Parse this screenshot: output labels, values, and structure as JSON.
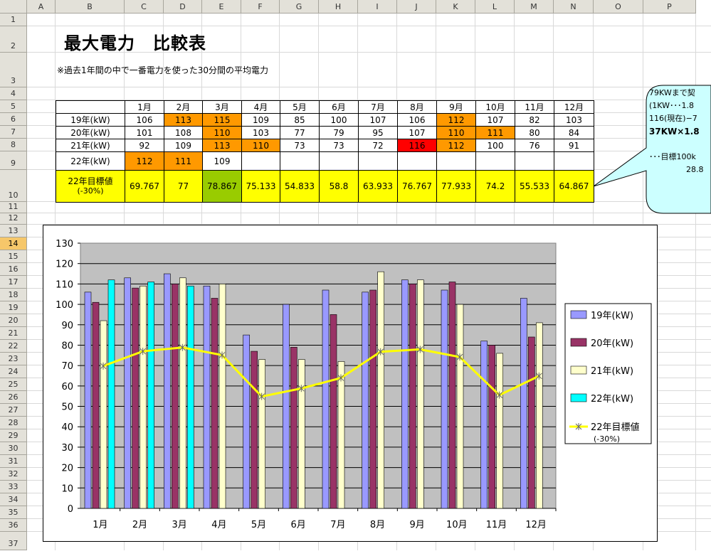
{
  "sheet": {
    "columns": [
      "A",
      "B",
      "C",
      "D",
      "E",
      "F",
      "G",
      "H",
      "I",
      "J",
      "K",
      "L",
      "M",
      "N",
      "O",
      "P"
    ],
    "rows": [
      "1",
      "2",
      "3",
      "4",
      "5",
      "6",
      "7",
      "8",
      "9",
      "10",
      "11",
      "12",
      "13",
      "14",
      "15",
      "16",
      "17",
      "18",
      "19",
      "20",
      "21",
      "22",
      "23",
      "24",
      "25",
      "26",
      "27",
      "28",
      "29",
      "30",
      "31",
      "32",
      "33",
      "34",
      "35",
      "36",
      "37"
    ],
    "selected_row": "14"
  },
  "title": "最大電力　比較表",
  "note": "※過去1年間の中で一番電力を使った30分間の平均電力",
  "table": {
    "months": [
      "1月",
      "2月",
      "3月",
      "4月",
      "5月",
      "6月",
      "7月",
      "8月",
      "9月",
      "10月",
      "11月",
      "12月"
    ],
    "rows": [
      {
        "label": "19年(kW)",
        "values": [
          "106",
          "113",
          "115",
          "109",
          "85",
          "100",
          "107",
          "106",
          "112",
          "107",
          "82",
          "103"
        ],
        "fills": [
          "",
          "#ff9900",
          "#ff9900",
          "",
          "",
          "",
          "",
          "",
          "#ff9900",
          "",
          "",
          ""
        ]
      },
      {
        "label": "20年(kW)",
        "values": [
          "101",
          "108",
          "110",
          "103",
          "77",
          "79",
          "95",
          "107",
          "110",
          "111",
          "80",
          "84"
        ],
        "fills": [
          "",
          "",
          "#ff9900",
          "",
          "",
          "",
          "",
          "",
          "#ff9900",
          "#ff9900",
          "",
          ""
        ]
      },
      {
        "label": "21年(kW)",
        "values": [
          "92",
          "109",
          "113",
          "110",
          "73",
          "73",
          "72",
          "116",
          "112",
          "100",
          "76",
          "91"
        ],
        "fills": [
          "",
          "",
          "#ff9900",
          "#ff9900",
          "",
          "",
          "",
          "#ff0000",
          "#ff9900",
          "",
          "",
          ""
        ]
      },
      {
        "label": "22年(kW)",
        "values": [
          "112",
          "111",
          "109",
          "",
          "",
          "",
          "",
          "",
          "",
          "",
          "",
          ""
        ],
        "fills": [
          "#ff9900",
          "#ff9900",
          "",
          "",
          "",
          "",
          "",
          "",
          "",
          "",
          "",
          ""
        ]
      }
    ],
    "target_label_1": "22年目標値",
    "target_label_2": "(-30%)",
    "target_values": [
      "69.767",
      "77",
      "78.867",
      "75.133",
      "54.833",
      "58.8",
      "63.933",
      "76.767",
      "77.933",
      "74.2",
      "55.533",
      "64.867"
    ],
    "target_fills": [
      "#ffff00",
      "#ffff00",
      "#99cc00",
      "#ffff00",
      "#ffff00",
      "#ffff00",
      "#ffff00",
      "#ffff00",
      "#ffff00",
      "#ffff00",
      "#ffff00",
      "#ffff00"
    ]
  },
  "callout": {
    "line1": "79KWまで契",
    "line2": "(1KW･･･1.8",
    "line3": "116(現在)−7",
    "line4": "37KW×1.8",
    "line5": "･･･目標100k",
    "line6": "28.8"
  },
  "colors": {
    "s19": "#9999ff",
    "s20": "#993366",
    "s21": "#ffffcc",
    "s22": "#00ffff",
    "target": "#ffff00",
    "plot_bg": "#c0c0c0",
    "callout_bg": "#ccffff"
  },
  "chart_data": {
    "type": "bar",
    "categories": [
      "1月",
      "2月",
      "3月",
      "4月",
      "5月",
      "6月",
      "7月",
      "8月",
      "9月",
      "10月",
      "11月",
      "12月"
    ],
    "ylim": [
      0,
      130
    ],
    "yticks": [
      "0",
      "10",
      "20",
      "30",
      "40",
      "50",
      "60",
      "70",
      "80",
      "90",
      "100",
      "110",
      "120",
      "130"
    ],
    "series": [
      {
        "name": "19年(kW)",
        "type": "bar",
        "values": [
          106,
          113,
          115,
          109,
          85,
          100,
          107,
          106,
          112,
          107,
          82,
          103
        ]
      },
      {
        "name": "20年(kW)",
        "type": "bar",
        "values": [
          101,
          108,
          110,
          103,
          77,
          79,
          95,
          107,
          110,
          111,
          80,
          84
        ]
      },
      {
        "name": "21年(kW)",
        "type": "bar",
        "values": [
          92,
          109,
          113,
          110,
          73,
          73,
          72,
          116,
          112,
          100,
          76,
          91
        ]
      },
      {
        "name": "22年(kW)",
        "type": "bar",
        "values": [
          112,
          111,
          109,
          null,
          null,
          null,
          null,
          null,
          null,
          null,
          null,
          null
        ]
      },
      {
        "name": "22年目標値",
        "name_sub": "(-30%)",
        "type": "line",
        "values": [
          69.767,
          77,
          78.867,
          75.133,
          54.833,
          58.8,
          63.933,
          76.767,
          77.933,
          74.2,
          55.533,
          64.867
        ]
      }
    ],
    "grid": true,
    "legend": "right"
  }
}
